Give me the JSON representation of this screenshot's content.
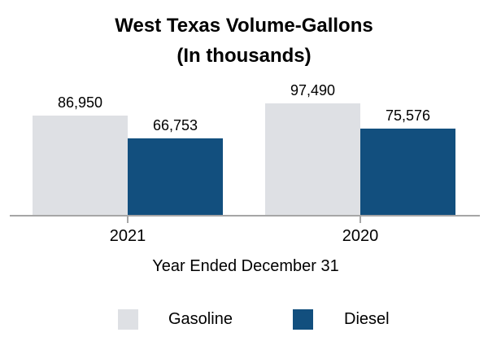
{
  "title": {
    "line1": "West Texas Volume-Gallons",
    "line2": "(In thousands)"
  },
  "chart_data": {
    "type": "bar",
    "title": "West Texas Volume-Gallons (In thousands)",
    "categories": [
      "2021",
      "2020"
    ],
    "series": [
      {
        "name": "Gasoline",
        "color": "#dee0e4",
        "values": [
          86950,
          97490
        ],
        "labels": [
          "86,950",
          "97,490"
        ]
      },
      {
        "name": "Diesel",
        "color": "#124f7e",
        "values": [
          66753,
          75576
        ],
        "labels": [
          "66,753",
          "75,576"
        ]
      }
    ],
    "xlabel": "Year Ended December 31",
    "ylabel": "",
    "ylim": [
      0,
      97490
    ],
    "grid": false,
    "value_labels_shown": true,
    "legend_position": "bottom"
  },
  "colors": {
    "gasoline": "#dee0e4",
    "diesel": "#124f7e",
    "axis_line": "#a6a6a6",
    "text": "#000000",
    "background": "#ffffff"
  }
}
